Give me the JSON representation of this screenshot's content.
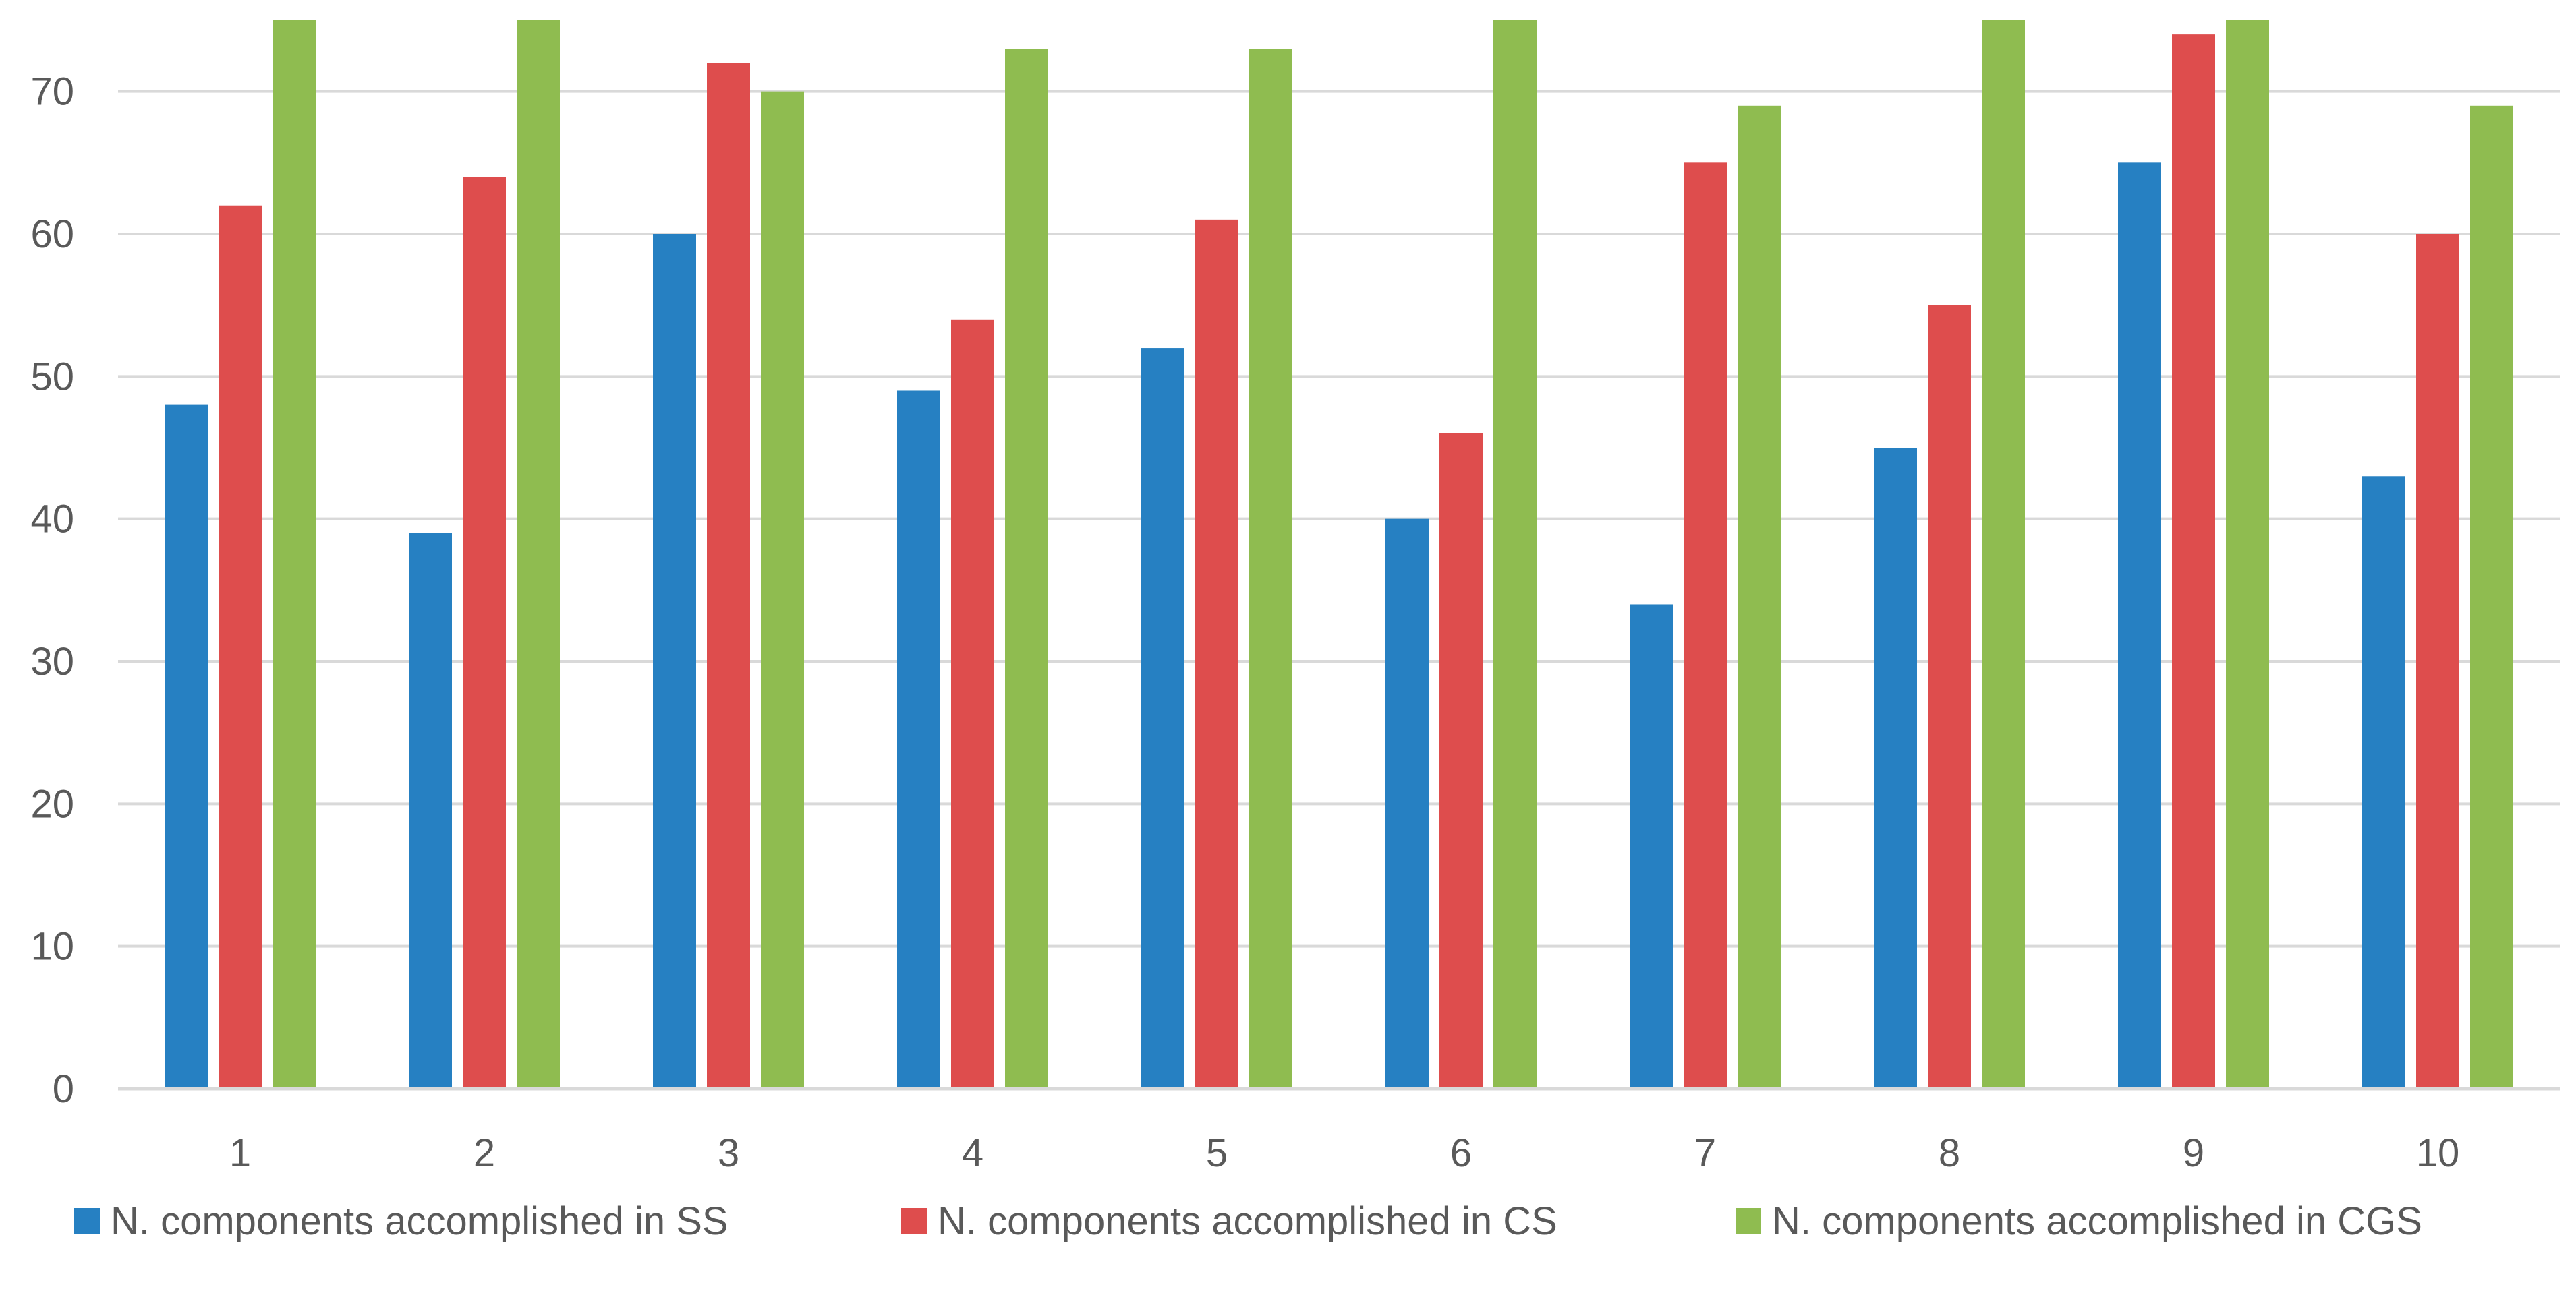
{
  "chart_data": {
    "type": "bar",
    "categories": [
      "1",
      "2",
      "3",
      "4",
      "5",
      "6",
      "7",
      "8",
      "9",
      "10"
    ],
    "series": [
      {
        "name": "N. components accomplished in SS",
        "color": "#2680C2",
        "values": [
          48,
          39,
          60,
          49,
          52,
          40,
          34,
          45,
          65,
          43
        ]
      },
      {
        "name": "N. components accomplished in CS",
        "color": "#DE4D4D",
        "values": [
          62,
          64,
          72,
          54,
          61,
          46,
          65,
          55,
          74,
          60
        ]
      },
      {
        "name": "N. components accomplished in CGS",
        "color": "#8FBC50",
        "values": [
          75,
          75,
          70,
          73,
          73,
          75,
          69,
          75,
          75,
          69
        ]
      }
    ],
    "ylim": [
      0,
      75
    ],
    "yticks": [
      0,
      10,
      20,
      30,
      40,
      50,
      60,
      70
    ],
    "grid": true,
    "legend_position": "bottom",
    "title": "",
    "xlabel": "",
    "ylabel": ""
  },
  "colors": {
    "grid": "#D9D9D9",
    "axis": "#D9D9D9",
    "text": "#595959"
  }
}
